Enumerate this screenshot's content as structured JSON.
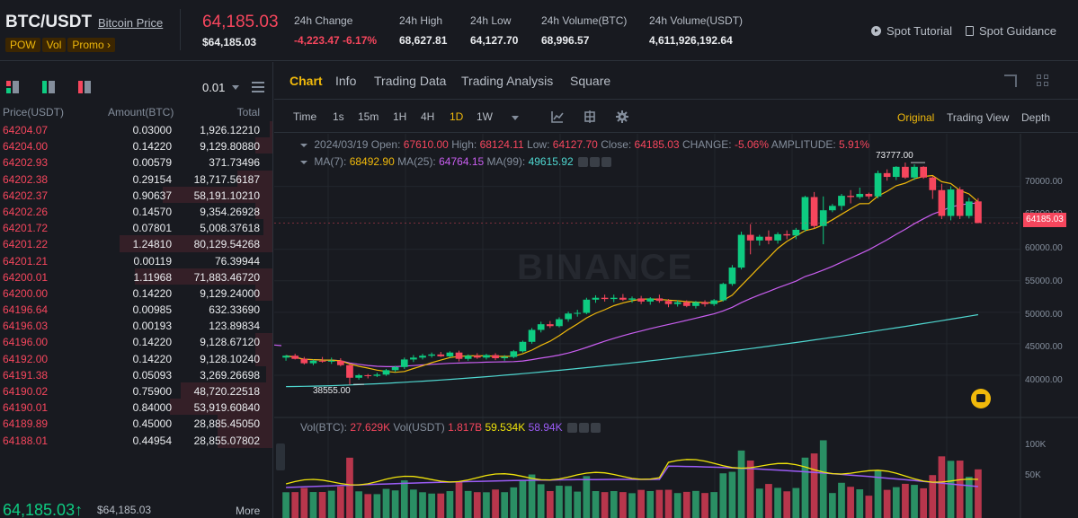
{
  "header": {
    "pair": "BTC/USDT",
    "pair_link": "Bitcoin Price",
    "tags": [
      "POW",
      "Vol",
      "Promo ›"
    ],
    "price": "64,185.03",
    "price_sub": "$64,185.03",
    "stats": [
      {
        "label": "24h Change",
        "value": "-4,223.47 -6.17%",
        "red": true
      },
      {
        "label": "24h High",
        "value": "68,627.81",
        "red": false
      },
      {
        "label": "24h Low",
        "value": "64,127.70",
        "red": false
      },
      {
        "label": "24h Volume(BTC)",
        "value": "68,996.57",
        "red": false
      },
      {
        "label": "24h Volume(USDT)",
        "value": "4,611,926,192.64",
        "red": false
      }
    ],
    "links": {
      "tutorial": "Spot Tutorial",
      "guidance": "Spot Guidance"
    }
  },
  "orderbook": {
    "step": "0.01",
    "columns": {
      "price": "Price(USDT)",
      "amount": "Amount(BTC)",
      "total": "Total"
    },
    "asks": [
      {
        "price": "64204.07",
        "amount": "0.03000",
        "total": "1,926.12210",
        "depth": 0.02
      },
      {
        "price": "64204.00",
        "amount": "0.14220",
        "total": "9,129.80880",
        "depth": 0.11
      },
      {
        "price": "64202.93",
        "amount": "0.00579",
        "total": "371.73496",
        "depth": 0.0
      },
      {
        "price": "64202.38",
        "amount": "0.29154",
        "total": "18,717.56187",
        "depth": 0.23
      },
      {
        "price": "64202.37",
        "amount": "0.90637",
        "total": "58,191.10210",
        "depth": 0.72
      },
      {
        "price": "64202.26",
        "amount": "0.14570",
        "total": "9,354.26928",
        "depth": 0.11
      },
      {
        "price": "64201.72",
        "amount": "0.07801",
        "total": "5,008.37618",
        "depth": 0.06
      },
      {
        "price": "64201.22",
        "amount": "1.24810",
        "total": "80,129.54268",
        "depth": 1.0
      },
      {
        "price": "64201.21",
        "amount": "0.00119",
        "total": "76.39944",
        "depth": 0.0
      },
      {
        "price": "64200.01",
        "amount": "1.11968",
        "total": "71,883.46720",
        "depth": 0.9
      },
      {
        "price": "64200.00",
        "amount": "0.14220",
        "total": "9,129.24000",
        "depth": 0.11
      },
      {
        "price": "64196.64",
        "amount": "0.00985",
        "total": "632.33690",
        "depth": 0.0
      },
      {
        "price": "64196.03",
        "amount": "0.00193",
        "total": "123.89834",
        "depth": 0.0
      },
      {
        "price": "64196.00",
        "amount": "0.14220",
        "total": "9,128.67120",
        "depth": 0.11
      },
      {
        "price": "64192.00",
        "amount": "0.14220",
        "total": "9,128.10240",
        "depth": 0.11
      },
      {
        "price": "64191.38",
        "amount": "0.05093",
        "total": "3,269.26698",
        "depth": 0.04
      },
      {
        "price": "64190.02",
        "amount": "0.75900",
        "total": "48,720.22518",
        "depth": 0.6
      },
      {
        "price": "64190.01",
        "amount": "0.84000",
        "total": "53,919.60840",
        "depth": 0.67
      },
      {
        "price": "64189.89",
        "amount": "0.45000",
        "total": "28,885.45050",
        "depth": 0.36
      },
      {
        "price": "64188.01",
        "amount": "0.44954",
        "total": "28,855.07802",
        "depth": 0.36
      }
    ],
    "last_price": "64,185.03",
    "last_arrow": "↑",
    "last_usd": "$64,185.03",
    "more": "More"
  },
  "tabs": [
    "Chart",
    "Info",
    "Trading Data",
    "Trading Analysis",
    "Square"
  ],
  "toolbar": {
    "timeframes": [
      "Time",
      "1s",
      "15m",
      "1H",
      "4H",
      "1D",
      "1W"
    ],
    "active_tf": "1D",
    "views": [
      "Original",
      "Trading View",
      "Depth"
    ]
  },
  "ohlc": {
    "date": "2024/03/19",
    "open_lbl": "Open:",
    "open": "67610.00",
    "high_lbl": "High:",
    "high": "68124.11",
    "low_lbl": "Low:",
    "low": "64127.70",
    "close_lbl": "Close:",
    "close": "64185.03",
    "change_lbl": "CHANGE:",
    "change": "-5.06%",
    "amp_lbl": "AMPLITUDE:",
    "amp": "5.91%"
  },
  "ma": {
    "ma7_lbl": "MA(7):",
    "ma7": "68492.90",
    "ma25_lbl": "MA(25):",
    "ma25": "64764.15",
    "ma99_lbl": "MA(99):",
    "ma99": "49615.92"
  },
  "vol": {
    "btc_lbl": "Vol(BTC):",
    "btc": "27.629K",
    "usdt_lbl": "Vol(USDT)",
    "usdt": "1.817B",
    "v1": "59.534K",
    "v2": "58.94K"
  },
  "chart": {
    "watermark": "BINANCE",
    "current_price_tag": "64185.03",
    "high_marker": "73777.00",
    "low_marker": "38555.00",
    "axis_labels": [
      "70000.00",
      "65000.00",
      "60000.00",
      "55000.00",
      "50000.00",
      "45000.00",
      "40000.00"
    ],
    "vol_axis_labels": [
      "100K",
      "50K"
    ]
  },
  "chart_data": {
    "type": "candlestick",
    "interval": "1D",
    "ylim": [
      37000,
      75500
    ],
    "candles_ohlc": [
      [
        42800,
        43200,
        42300,
        43100
      ],
      [
        43100,
        43400,
        42500,
        42600
      ],
      [
        42600,
        42900,
        41700,
        41900
      ],
      [
        41900,
        42500,
        41600,
        42300
      ],
      [
        42300,
        42900,
        42000,
        42200
      ],
      [
        42200,
        42800,
        41800,
        42300
      ],
      [
        42300,
        42700,
        41400,
        41600
      ],
      [
        41600,
        41800,
        38500,
        39600
      ],
      [
        39600,
        40200,
        39300,
        40000
      ],
      [
        40000,
        40200,
        39500,
        39900
      ],
      [
        39900,
        40400,
        39700,
        40100
      ],
      [
        40100,
        41000,
        39900,
        40800
      ],
      [
        40800,
        41500,
        40500,
        41300
      ],
      [
        41300,
        42800,
        41000,
        42500
      ],
      [
        42500,
        43200,
        42100,
        42800
      ],
      [
        42800,
        43400,
        42500,
        43100
      ],
      [
        43100,
        43600,
        42800,
        43300
      ],
      [
        43300,
        43700,
        42900,
        43000
      ],
      [
        43000,
        43800,
        42800,
        43600
      ],
      [
        43600,
        43900,
        42200,
        42600
      ],
      [
        42600,
        43300,
        42300,
        43100
      ],
      [
        43100,
        43500,
        42600,
        42800
      ],
      [
        42800,
        43400,
        42500,
        43200
      ],
      [
        43200,
        43500,
        42400,
        42700
      ],
      [
        42700,
        43200,
        42300,
        42900
      ],
      [
        42900,
        44000,
        42700,
        43800
      ],
      [
        43800,
        45500,
        43600,
        45300
      ],
      [
        45300,
        47500,
        45000,
        47200
      ],
      [
        47200,
        48500,
        46800,
        48100
      ],
      [
        48100,
        48600,
        47500,
        47800
      ],
      [
        47800,
        49200,
        47600,
        48900
      ],
      [
        48900,
        50100,
        48500,
        49800
      ],
      [
        49800,
        50400,
        49300,
        49900
      ],
      [
        49900,
        52300,
        49700,
        52000
      ],
      [
        52000,
        52700,
        51500,
        52300
      ],
      [
        52300,
        52800,
        51700,
        52100
      ],
      [
        52100,
        52800,
        51600,
        52300
      ],
      [
        52300,
        52900,
        51800,
        52000
      ],
      [
        52000,
        52500,
        51500,
        52200
      ],
      [
        52200,
        52600,
        51300,
        51700
      ],
      [
        51700,
        52400,
        51200,
        52200
      ],
      [
        52200,
        52800,
        51500,
        51800
      ],
      [
        51800,
        52100,
        50800,
        51300
      ],
      [
        51300,
        51900,
        50900,
        51600
      ],
      [
        51600,
        51900,
        50800,
        51000
      ],
      [
        51000,
        51800,
        50600,
        51600
      ],
      [
        51600,
        51900,
        50900,
        51300
      ],
      [
        51300,
        52100,
        51000,
        51900
      ],
      [
        51900,
        54700,
        51700,
        54500
      ],
      [
        54500,
        57500,
        54200,
        57100
      ],
      [
        57100,
        62800,
        56800,
        62300
      ],
      [
        62300,
        64000,
        59200,
        61400
      ],
      [
        61400,
        62300,
        60600,
        62000
      ],
      [
        62000,
        63000,
        60800,
        61400
      ],
      [
        61400,
        62700,
        60900,
        62400
      ],
      [
        62400,
        63000,
        61600,
        62200
      ],
      [
        62200,
        63400,
        61600,
        63100
      ],
      [
        63100,
        68500,
        62800,
        68300
      ],
      [
        68300,
        69100,
        63300,
        63700
      ],
      [
        63700,
        68400,
        60800,
        66200
      ],
      [
        66200,
        67200,
        65900,
        66900
      ],
      [
        66900,
        68800,
        66200,
        68500
      ],
      [
        68500,
        69400,
        67300,
        68300
      ],
      [
        68300,
        69800,
        68000,
        68800
      ],
      [
        68800,
        69000,
        68000,
        68400
      ],
      [
        68400,
        72500,
        68100,
        72100
      ],
      [
        72100,
        72700,
        70900,
        71500
      ],
      [
        71500,
        73200,
        71000,
        73100
      ],
      [
        73100,
        73777,
        71200,
        71400
      ],
      [
        71400,
        73500,
        71000,
        73100
      ],
      [
        73100,
        73200,
        71200,
        71400
      ],
      [
        71400,
        71600,
        68000,
        69400
      ],
      [
        69400,
        70400,
        64800,
        65300
      ],
      [
        65300,
        70000,
        64600,
        69500
      ],
      [
        69500,
        69900,
        64800,
        65300
      ],
      [
        65300,
        68200,
        64900,
        67600
      ],
      [
        67610,
        68124.11,
        64127.7,
        64185.03
      ]
    ],
    "ma7_last": 68492.9,
    "ma25_last": 64764.15,
    "ma99_last": 49615.92
  }
}
